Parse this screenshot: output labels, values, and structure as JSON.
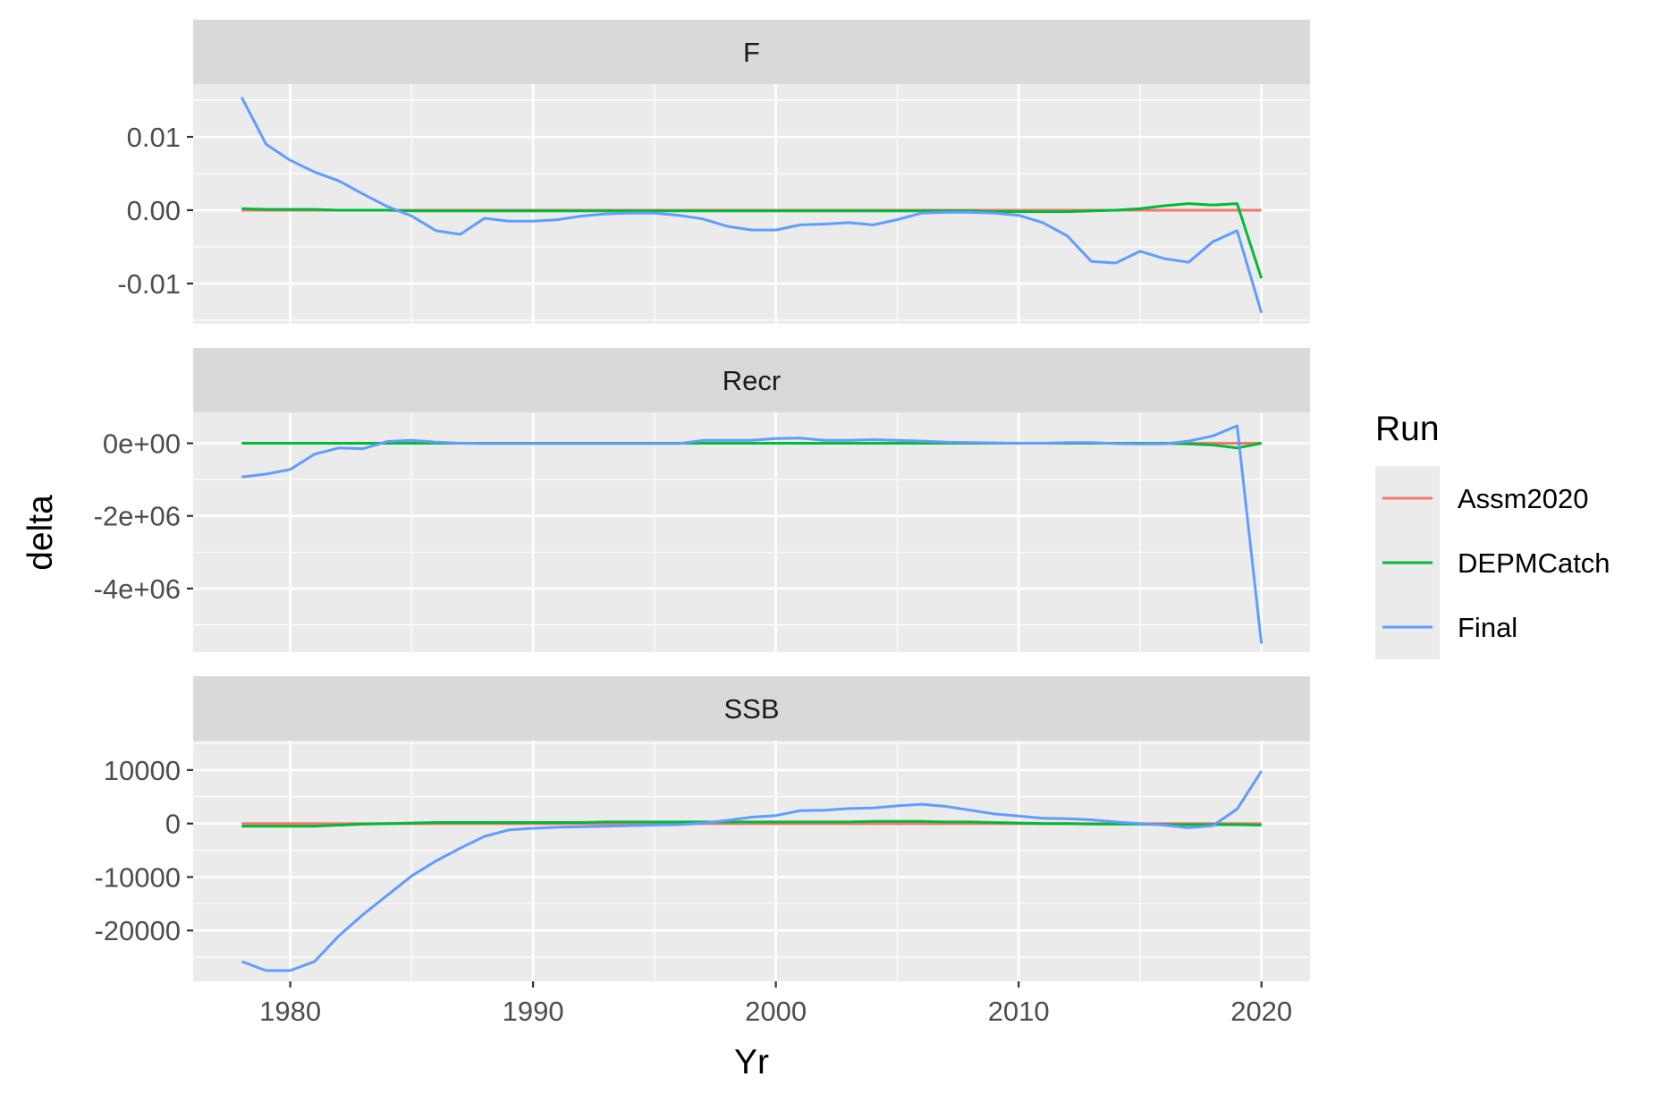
{
  "chart_data": {
    "type": "line",
    "xlabel": "Yr",
    "ylabel": "delta",
    "xlim": [
      1976,
      2022
    ],
    "x_ticks": [
      1980,
      1990,
      2000,
      2010,
      2020
    ],
    "x_tick_labels": [
      "1980",
      "1990",
      "2000",
      "2010",
      "2020"
    ],
    "legend": {
      "title": "Run",
      "position": "right",
      "items": [
        {
          "name": "Assm2020",
          "color": "#F8766D"
        },
        {
          "name": "DEPMCatch",
          "color": "#00BA38"
        },
        {
          "name": "Final",
          "color": "#619CFF"
        }
      ]
    },
    "background": "#EBEBEB",
    "strip_background": "#D9D9D9",
    "grid": true,
    "facets": [
      {
        "strip": "F",
        "ylim": [
          -0.0155,
          0.0172
        ],
        "y_ticks": [
          0.01,
          0,
          -0.01
        ],
        "y_tick_labels": [
          "0.01",
          "0.00",
          "-0.01"
        ],
        "x": [
          1978,
          1979,
          1980,
          1981,
          1982,
          1983,
          1984,
          1985,
          1986,
          1987,
          1988,
          1989,
          1990,
          1991,
          1992,
          1993,
          1994,
          1995,
          1996,
          1997,
          1998,
          1999,
          2000,
          2001,
          2002,
          2003,
          2004,
          2005,
          2006,
          2007,
          2008,
          2009,
          2010,
          2011,
          2012,
          2013,
          2014,
          2015,
          2016,
          2017,
          2018,
          2019,
          2020
        ],
        "series": [
          {
            "name": "Assm2020",
            "values": [
              0,
              0,
              0,
              0,
              0,
              0,
              0,
              0,
              0,
              0,
              0,
              0,
              0,
              0,
              0,
              0,
              0,
              0,
              0,
              0,
              0,
              0,
              0,
              0,
              0,
              0,
              0,
              0,
              0,
              0,
              0,
              0,
              0,
              0,
              0,
              0,
              0,
              0,
              0,
              0,
              0,
              0,
              0
            ]
          },
          {
            "name": "DEPMCatch",
            "values": [
              0.0002,
              0.0001,
              0.0001,
              0.0001,
              0,
              0,
              0,
              -0.0001,
              -0.0001,
              -0.0001,
              -0.0001,
              -0.0001,
              -0.0001,
              -0.0001,
              -0.0001,
              -0.0001,
              -0.0001,
              -0.0001,
              -0.0001,
              -0.0001,
              -0.0001,
              -0.0001,
              -0.0001,
              -0.0001,
              -0.0001,
              -0.0001,
              -0.0001,
              -0.0001,
              -0.0001,
              -0.0001,
              -0.0001,
              -0.0002,
              -0.0002,
              -0.0002,
              -0.0002,
              -0.0001,
              0,
              0.0002,
              0.0006,
              0.0009,
              0.0007,
              0.0009,
              -0.0093
            ]
          },
          {
            "name": "Final",
            "values": [
              0.0154,
              0.009,
              0.0068,
              0.0052,
              0.004,
              0.0022,
              0.0005,
              -0.0008,
              -0.0028,
              -0.0033,
              -0.0011,
              -0.0015,
              -0.0015,
              -0.0013,
              -0.0008,
              -0.0005,
              -0.0004,
              -0.0004,
              -0.0007,
              -0.0012,
              -0.0022,
              -0.0027,
              -0.0027,
              -0.002,
              -0.0019,
              -0.0017,
              -0.002,
              -0.0013,
              -0.0004,
              -0.0003,
              -0.0003,
              -0.0004,
              -0.0007,
              -0.0017,
              -0.0035,
              -0.007,
              -0.0072,
              -0.0056,
              -0.0066,
              -0.0071,
              -0.0043,
              -0.0028,
              -0.014
            ]
          }
        ]
      },
      {
        "strip": "Recr",
        "ylim": [
          -5750000,
          850000
        ],
        "y_ticks": [
          0,
          -2000000,
          -4000000
        ],
        "y_tick_labels": [
          "0e+00",
          "-2e+06",
          "-4e+06"
        ],
        "x": [
          1978,
          1979,
          1980,
          1981,
          1982,
          1983,
          1984,
          1985,
          1986,
          1987,
          1988,
          1989,
          1990,
          1991,
          1992,
          1993,
          1994,
          1995,
          1996,
          1997,
          1998,
          1999,
          2000,
          2001,
          2002,
          2003,
          2004,
          2005,
          2006,
          2007,
          2008,
          2009,
          2010,
          2011,
          2012,
          2013,
          2014,
          2015,
          2016,
          2017,
          2018,
          2019,
          2020
        ],
        "series": [
          {
            "name": "Assm2020",
            "values": [
              0,
              0,
              0,
              0,
              0,
              0,
              0,
              0,
              0,
              0,
              0,
              0,
              0,
              0,
              0,
              0,
              0,
              0,
              0,
              0,
              0,
              0,
              0,
              0,
              0,
              0,
              0,
              0,
              0,
              0,
              0,
              0,
              0,
              0,
              0,
              0,
              0,
              0,
              0,
              0,
              0,
              0,
              0
            ]
          },
          {
            "name": "DEPMCatch",
            "values": [
              0,
              0,
              0,
              0,
              0,
              0,
              0,
              0,
              0,
              0,
              0,
              0,
              0,
              0,
              0,
              0,
              0,
              0,
              0,
              0,
              0,
              0,
              0,
              0,
              0,
              0,
              0,
              0,
              0,
              0,
              0,
              0,
              0,
              0,
              0,
              0,
              0,
              0,
              0,
              -20000,
              -50000,
              -130000,
              0
            ]
          },
          {
            "name": "Final",
            "values": [
              -930000,
              -850000,
              -720000,
              -300000,
              -130000,
              -150000,
              50000,
              80000,
              30000,
              0,
              -10000,
              -10000,
              -10000,
              -10000,
              -10000,
              -10000,
              -10000,
              -10000,
              -10000,
              80000,
              80000,
              80000,
              130000,
              140000,
              80000,
              80000,
              100000,
              80000,
              60000,
              30000,
              20000,
              10000,
              0,
              0,
              20000,
              20000,
              -10000,
              -20000,
              -20000,
              60000,
              200000,
              480000,
              -5520000
            ]
          }
        ]
      },
      {
        "strip": "SSB",
        "ylim": [
          -29500,
          15500
        ],
        "y_ticks": [
          10000,
          0,
          -10000,
          -20000
        ],
        "y_tick_labels": [
          "10000",
          "0",
          "-10000",
          "-20000"
        ],
        "x": [
          1978,
          1979,
          1980,
          1981,
          1982,
          1983,
          1984,
          1985,
          1986,
          1987,
          1988,
          1989,
          1990,
          1991,
          1992,
          1993,
          1994,
          1995,
          1996,
          1997,
          1998,
          1999,
          2000,
          2001,
          2002,
          2003,
          2004,
          2005,
          2006,
          2007,
          2008,
          2009,
          2010,
          2011,
          2012,
          2013,
          2014,
          2015,
          2016,
          2017,
          2018,
          2019,
          2020
        ],
        "series": [
          {
            "name": "Assm2020",
            "values": [
              0,
              0,
              0,
              0,
              0,
              0,
              0,
              0,
              0,
              0,
              0,
              0,
              0,
              0,
              0,
              0,
              0,
              0,
              0,
              0,
              0,
              0,
              0,
              0,
              0,
              0,
              0,
              0,
              0,
              0,
              0,
              0,
              0,
              0,
              0,
              0,
              0,
              0,
              0,
              0,
              0,
              0,
              0
            ]
          },
          {
            "name": "DEPMCatch",
            "values": [
              -500,
              -500,
              -500,
              -500,
              -300,
              -100,
              0,
              100,
              200,
              200,
              200,
              200,
              200,
              200,
              200,
              300,
              300,
              300,
              300,
              300,
              300,
              300,
              300,
              300,
              300,
              300,
              400,
              400,
              400,
              300,
              300,
              200,
              100,
              0,
              0,
              -100,
              -100,
              -100,
              -200,
              -200,
              -200,
              -200,
              -300
            ]
          },
          {
            "name": "Final",
            "values": [
              -25800,
              -27500,
              -27500,
              -25800,
              -21000,
              -17000,
              -13400,
              -9800,
              -7000,
              -4600,
              -2400,
              -1200,
              -900,
              -700,
              -600,
              -500,
              -400,
              -300,
              -200,
              100,
              600,
              1200,
              1500,
              2400,
              2500,
              2800,
              2900,
              3300,
              3600,
              3200,
              2500,
              1800,
              1400,
              1000,
              900,
              700,
              300,
              0,
              -300,
              -800,
              -400,
              2700,
              9800
            ]
          }
        ]
      }
    ]
  }
}
